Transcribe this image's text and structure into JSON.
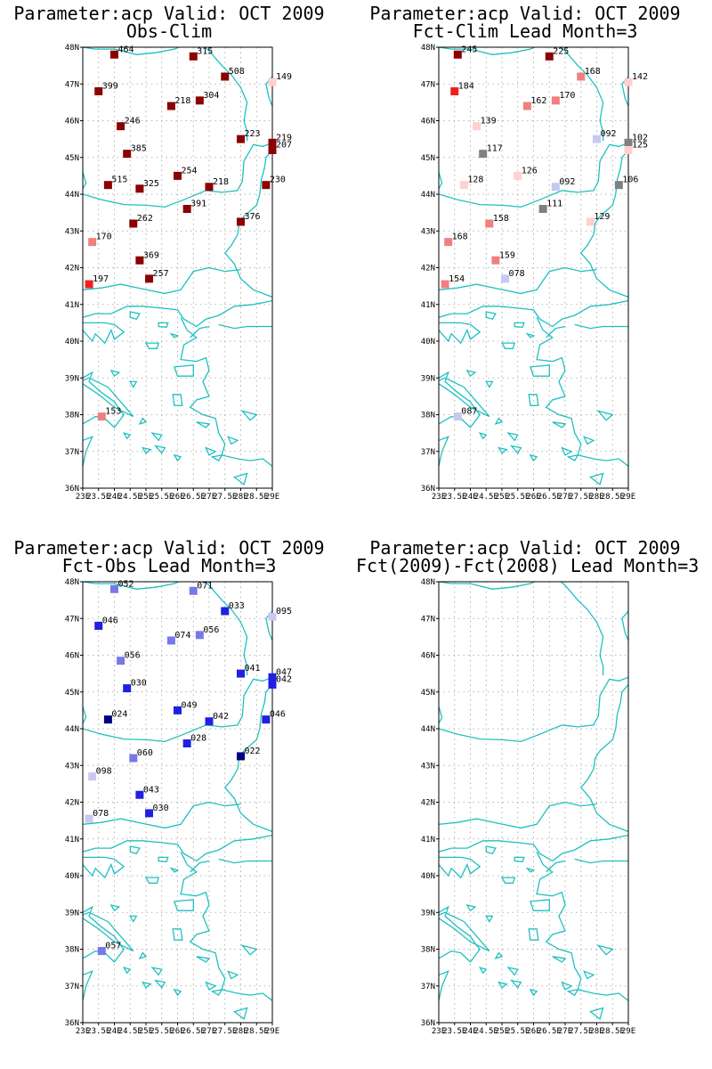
{
  "panels": [
    {
      "title_line1": "Parameter:acp Valid: OCT 2009",
      "title_line2": "Obs-Clim",
      "stations": [
        {
          "lon": 24.0,
          "lat": 47.8,
          "label": "464",
          "color": "#8b0000"
        },
        {
          "lon": 26.5,
          "lat": 47.75,
          "label": "315",
          "color": "#8b0000"
        },
        {
          "lon": 27.5,
          "lat": 47.2,
          "label": "508",
          "color": "#8b0000"
        },
        {
          "lon": 29.0,
          "lat": 47.05,
          "label": "149",
          "color": "#ffd0d0"
        },
        {
          "lon": 23.5,
          "lat": 46.8,
          "label": "399",
          "color": "#8b0000"
        },
        {
          "lon": 25.8,
          "lat": 46.4,
          "label": "218",
          "color": "#8b0000"
        },
        {
          "lon": 26.7,
          "lat": 46.55,
          "label": "304",
          "color": "#8b0000"
        },
        {
          "lon": 24.2,
          "lat": 45.85,
          "label": "246",
          "color": "#8b0000"
        },
        {
          "lon": 28.0,
          "lat": 45.5,
          "label": "223",
          "color": "#8b0000"
        },
        {
          "lon": 29.0,
          "lat": 45.4,
          "label": "219",
          "color": "#8b0000"
        },
        {
          "lon": 29.0,
          "lat": 45.2,
          "label": "207",
          "color": "#8b0000"
        },
        {
          "lon": 24.4,
          "lat": 45.1,
          "label": "385",
          "color": "#8b0000"
        },
        {
          "lon": 26.0,
          "lat": 44.5,
          "label": "254",
          "color": "#8b0000"
        },
        {
          "lon": 23.8,
          "lat": 44.25,
          "label": "515",
          "color": "#8b0000"
        },
        {
          "lon": 24.8,
          "lat": 44.15,
          "label": "325",
          "color": "#8b0000"
        },
        {
          "lon": 27.0,
          "lat": 44.2,
          "label": "218",
          "color": "#8b0000"
        },
        {
          "lon": 28.8,
          "lat": 44.25,
          "label": "230",
          "color": "#8b0000"
        },
        {
          "lon": 26.3,
          "lat": 43.6,
          "label": "391",
          "color": "#8b0000"
        },
        {
          "lon": 24.6,
          "lat": 43.2,
          "label": "262",
          "color": "#8b0000"
        },
        {
          "lon": 28.0,
          "lat": 43.25,
          "label": "376",
          "color": "#8b0000"
        },
        {
          "lon": 23.3,
          "lat": 42.7,
          "label": "170",
          "color": "#f08080"
        },
        {
          "lon": 24.8,
          "lat": 42.2,
          "label": "369",
          "color": "#8b0000"
        },
        {
          "lon": 25.1,
          "lat": 41.7,
          "label": "257",
          "color": "#8b0000"
        },
        {
          "lon": 23.2,
          "lat": 41.55,
          "label": "197",
          "color": "#ee2020"
        },
        {
          "lon": 23.6,
          "lat": 37.95,
          "label": "153",
          "color": "#f08080"
        }
      ]
    },
    {
      "title_line1": "Parameter:acp Valid: OCT 2009",
      "title_line2": "Fct-Clim Lead Month=3",
      "stations": [
        {
          "lon": 23.6,
          "lat": 47.8,
          "label": "245",
          "color": "#8b0000"
        },
        {
          "lon": 26.5,
          "lat": 47.75,
          "label": "225",
          "color": "#8b0000"
        },
        {
          "lon": 27.5,
          "lat": 47.2,
          "label": "168",
          "color": "#f08080"
        },
        {
          "lon": 29.0,
          "lat": 47.05,
          "label": "142",
          "color": "#ffd0d0"
        },
        {
          "lon": 23.5,
          "lat": 46.8,
          "label": "184",
          "color": "#ee2020"
        },
        {
          "lon": 25.8,
          "lat": 46.4,
          "label": "162",
          "color": "#f08080"
        },
        {
          "lon": 26.7,
          "lat": 46.55,
          "label": "170",
          "color": "#f08080"
        },
        {
          "lon": 24.2,
          "lat": 45.85,
          "label": "139",
          "color": "#ffd0d0"
        },
        {
          "lon": 28.0,
          "lat": 45.5,
          "label": "092",
          "color": "#c8c8f0"
        },
        {
          "lon": 29.0,
          "lat": 45.4,
          "label": "102",
          "color": "#808080"
        },
        {
          "lon": 29.0,
          "lat": 45.2,
          "label": "125",
          "color": "#ffd0d0"
        },
        {
          "lon": 24.4,
          "lat": 45.1,
          "label": "117",
          "color": "#808080"
        },
        {
          "lon": 25.5,
          "lat": 44.5,
          "label": "126",
          "color": "#ffd0d0"
        },
        {
          "lon": 23.8,
          "lat": 44.25,
          "label": "128",
          "color": "#ffd0d0"
        },
        {
          "lon": 26.7,
          "lat": 44.2,
          "label": "092",
          "color": "#c8c8f0"
        },
        {
          "lon": 28.7,
          "lat": 44.25,
          "label": "106",
          "color": "#808080"
        },
        {
          "lon": 26.3,
          "lat": 43.6,
          "label": "111",
          "color": "#808080"
        },
        {
          "lon": 24.6,
          "lat": 43.2,
          "label": "158",
          "color": "#f08080"
        },
        {
          "lon": 27.8,
          "lat": 43.25,
          "label": "129",
          "color": "#ffd0d0"
        },
        {
          "lon": 23.3,
          "lat": 42.7,
          "label": "168",
          "color": "#f08080"
        },
        {
          "lon": 24.8,
          "lat": 42.2,
          "label": "159",
          "color": "#f08080"
        },
        {
          "lon": 25.1,
          "lat": 41.7,
          "label": "078",
          "color": "#c8c8f0"
        },
        {
          "lon": 23.2,
          "lat": 41.55,
          "label": "154",
          "color": "#f08080"
        },
        {
          "lon": 23.6,
          "lat": 37.95,
          "label": "087",
          "color": "#c8c8f0"
        }
      ]
    },
    {
      "title_line1": "Parameter:acp Valid: OCT 2009",
      "title_line2": "Fct-Obs Lead Month=3",
      "stations": [
        {
          "lon": 24.0,
          "lat": 47.8,
          "label": "052",
          "color": "#7878e8"
        },
        {
          "lon": 26.5,
          "lat": 47.75,
          "label": "071",
          "color": "#7878e8"
        },
        {
          "lon": 27.5,
          "lat": 47.2,
          "label": "033",
          "color": "#2020e0"
        },
        {
          "lon": 29.0,
          "lat": 47.05,
          "label": "095",
          "color": "#c8c8f0"
        },
        {
          "lon": 23.5,
          "lat": 46.8,
          "label": "046",
          "color": "#2020e0"
        },
        {
          "lon": 25.8,
          "lat": 46.4,
          "label": "074",
          "color": "#7878e8"
        },
        {
          "lon": 26.7,
          "lat": 46.55,
          "label": "056",
          "color": "#7878e8"
        },
        {
          "lon": 24.2,
          "lat": 45.85,
          "label": "056",
          "color": "#7878e8"
        },
        {
          "lon": 28.0,
          "lat": 45.5,
          "label": "041",
          "color": "#2020e0"
        },
        {
          "lon": 29.0,
          "lat": 45.4,
          "label": "047",
          "color": "#2020e0"
        },
        {
          "lon": 29.0,
          "lat": 45.2,
          "label": "042",
          "color": "#2020e0"
        },
        {
          "lon": 24.4,
          "lat": 45.1,
          "label": "030",
          "color": "#2020e0"
        },
        {
          "lon": 26.0,
          "lat": 44.5,
          "label": "049",
          "color": "#2020e0"
        },
        {
          "lon": 23.8,
          "lat": 44.25,
          "label": "024",
          "color": "#000080"
        },
        {
          "lon": 27.0,
          "lat": 44.2,
          "label": "042",
          "color": "#2020e0"
        },
        {
          "lon": 28.8,
          "lat": 44.25,
          "label": "046",
          "color": "#2020e0"
        },
        {
          "lon": 26.3,
          "lat": 43.6,
          "label": "028",
          "color": "#2020e0"
        },
        {
          "lon": 24.6,
          "lat": 43.2,
          "label": "060",
          "color": "#7878e8"
        },
        {
          "lon": 28.0,
          "lat": 43.25,
          "label": "022",
          "color": "#000080"
        },
        {
          "lon": 23.3,
          "lat": 42.7,
          "label": "098",
          "color": "#c8c8f0"
        },
        {
          "lon": 24.8,
          "lat": 42.2,
          "label": "043",
          "color": "#2020e0"
        },
        {
          "lon": 25.1,
          "lat": 41.7,
          "label": "030",
          "color": "#2020e0"
        },
        {
          "lon": 23.2,
          "lat": 41.55,
          "label": "078",
          "color": "#c8c8f0"
        },
        {
          "lon": 23.6,
          "lat": 37.95,
          "label": "057",
          "color": "#7878e8"
        }
      ]
    },
    {
      "title_line1": "Parameter:acp Valid: OCT 2009",
      "title_line2": "Fct(2009)-Fct(2008) Lead Month=3",
      "stations": []
    }
  ],
  "axes": {
    "lat_ticks": [
      "36N",
      "37N",
      "38N",
      "39N",
      "40N",
      "41N",
      "42N",
      "43N",
      "44N",
      "45N",
      "46N",
      "47N",
      "48N"
    ],
    "lon_ticks": [
      "23E",
      "23.5E",
      "24E",
      "24.5E",
      "25E",
      "25.5E",
      "26E",
      "26.5E",
      "27E",
      "27.5E",
      "28E",
      "28.5E",
      "29E"
    ],
    "lon_range": [
      23,
      29
    ],
    "lat_range": [
      36,
      48
    ]
  },
  "colors": {
    "coast": "#20c0c0",
    "grid": "#a0a0a0",
    "frame": "#000000"
  }
}
